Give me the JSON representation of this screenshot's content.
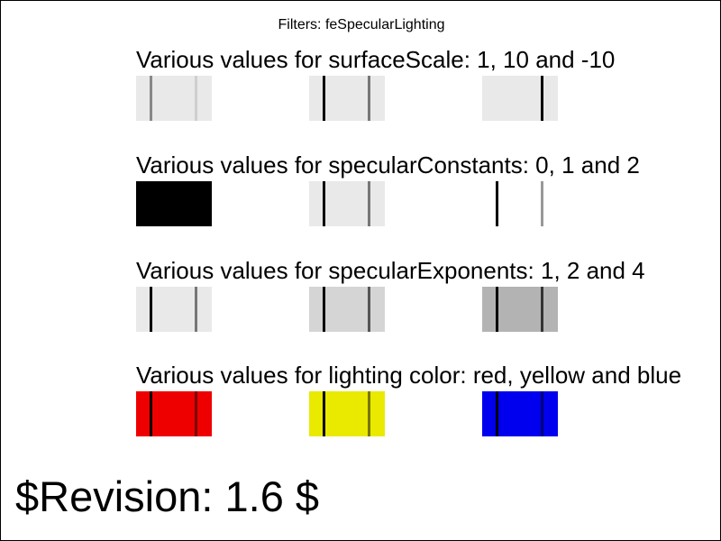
{
  "title": "Filters: feSpecularLighting",
  "rows": [
    {
      "label": "Various values for surfaceScale: 1, 10 and -10",
      "swatches": [
        {
          "fill": "#e9e9e9",
          "bar1": "#888888",
          "bar2": "#cfcfcf"
        },
        {
          "fill": "#e9e9e9",
          "bar1": "#000000",
          "bar2": "#777777"
        },
        {
          "fill": "#e9e9e9",
          "bar1": "#e9e9e9",
          "bar2": "#000000"
        }
      ]
    },
    {
      "label": "Various values for specularConstants: 0, 1 and 2",
      "swatches": [
        {
          "fill": "#000000",
          "bar1": "#000000",
          "bar2": "#000000"
        },
        {
          "fill": "#e9e9e9",
          "bar1": "#000000",
          "bar2": "#777777"
        },
        {
          "fill": "#ffffff",
          "bar1": "#000000",
          "bar2": "#999999"
        }
      ]
    },
    {
      "label": "Various values for specularExponents: 1, 2 and 4",
      "swatches": [
        {
          "fill": "#e9e9e9",
          "bar1": "#000000",
          "bar2": "#777777"
        },
        {
          "fill": "#d5d5d5",
          "bar1": "#000000",
          "bar2": "#555555"
        },
        {
          "fill": "#b3b3b3",
          "bar1": "#000000",
          "bar2": "#333333"
        }
      ]
    },
    {
      "label": "Various values for lighting color: red, yellow and blue",
      "swatches": [
        {
          "fill": "#ee0000",
          "bar1": "#000000",
          "bar2": "#770000"
        },
        {
          "fill": "#eaea00",
          "bar1": "#000000",
          "bar2": "#777700"
        },
        {
          "fill": "#0000ee",
          "bar1": "#000000",
          "bar2": "#000077"
        }
      ]
    }
  ],
  "revision": "$Revision: 1.6 $"
}
